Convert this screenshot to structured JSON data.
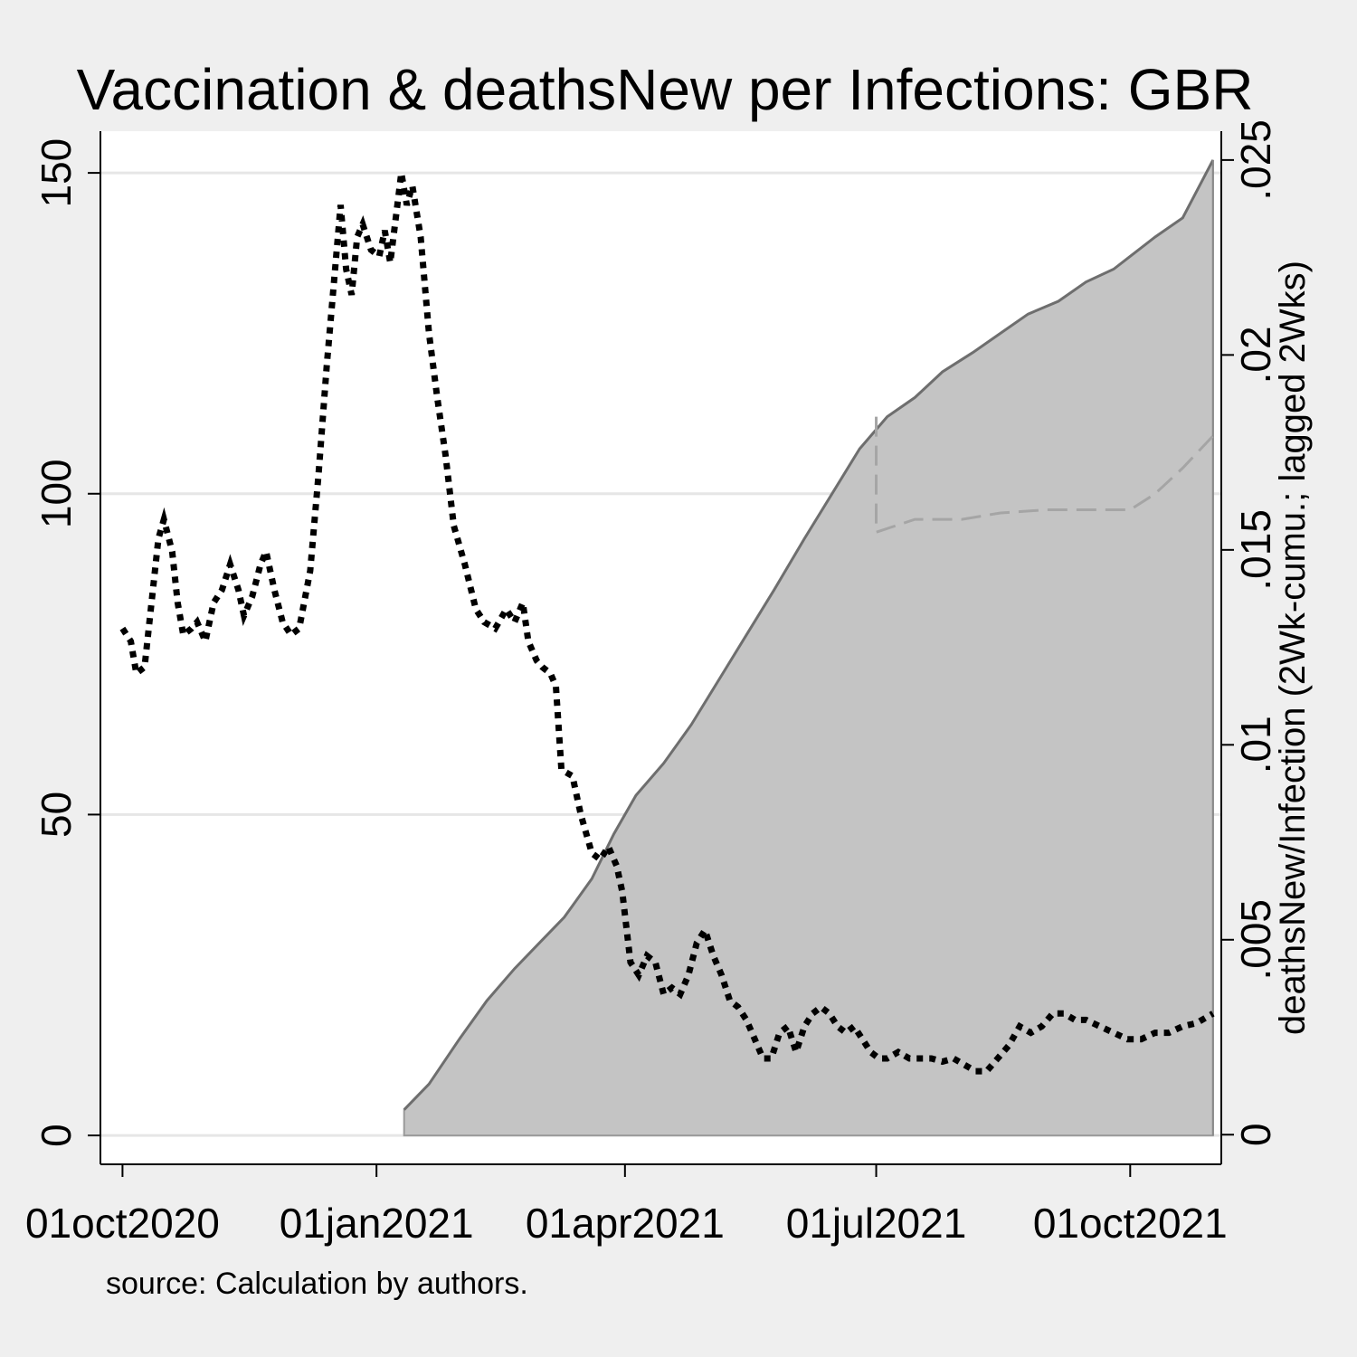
{
  "chart_data": {
    "type": "line",
    "title": "Vaccination & deathsNew per Infections: GBR",
    "note": "source: Calculation by authors.",
    "x_axis": {
      "type": "date",
      "ticks": [
        {
          "date": "2020-10-01",
          "label": "01oct2020"
        },
        {
          "date": "2021-01-01",
          "label": "01jan2021"
        },
        {
          "date": "2021-04-01",
          "label": "01apr2021"
        },
        {
          "date": "2021-07-01",
          "label": "01jul2021"
        },
        {
          "date": "2021-10-01",
          "label": "01oct2021"
        }
      ],
      "range": [
        "2020-09-23",
        "2021-11-03"
      ]
    },
    "y_left": {
      "ticks": [
        {
          "value": 0,
          "label": "0"
        },
        {
          "value": 50,
          "label": "50"
        },
        {
          "value": 100,
          "label": "100"
        },
        {
          "value": 150,
          "label": "150"
        }
      ],
      "range": [
        -4.5,
        156.5
      ],
      "gridlines": [
        0,
        50,
        100,
        150
      ]
    },
    "y_right": {
      "label": "deathsNew/Infection (2Wk-cumu.; lagged 2Wks)",
      "ticks": [
        {
          "value": 0,
          "label": "0"
        },
        {
          "value": 0.005,
          "label": ".005"
        },
        {
          "value": 0.01,
          "label": ".01"
        },
        {
          "value": 0.015,
          "label": ".015"
        },
        {
          "value": 0.02,
          "label": ".02"
        },
        {
          "value": 0.025,
          "label": ".025"
        }
      ],
      "range": [
        -0.00076,
        0.02574
      ]
    },
    "series": [
      {
        "axis": "left",
        "style": "area",
        "color": "#c4c4c4",
        "points": [
          [
            "2021-01-11",
            4
          ],
          [
            "2021-01-20",
            8
          ],
          [
            "2021-01-31",
            15
          ],
          [
            "2021-02-10",
            21
          ],
          [
            "2021-02-20",
            26
          ],
          [
            "2021-03-01",
            30
          ],
          [
            "2021-03-10",
            34
          ],
          [
            "2021-03-20",
            40
          ],
          [
            "2021-03-28",
            47
          ],
          [
            "2021-04-05",
            53
          ],
          [
            "2021-04-15",
            58
          ],
          [
            "2021-04-25",
            64
          ],
          [
            "2021-05-05",
            71
          ],
          [
            "2021-05-15",
            78
          ],
          [
            "2021-05-25",
            85
          ],
          [
            "2021-06-05",
            93
          ],
          [
            "2021-06-15",
            100
          ],
          [
            "2021-06-25",
            107
          ],
          [
            "2021-07-05",
            112
          ],
          [
            "2021-07-15",
            115
          ],
          [
            "2021-07-25",
            119
          ],
          [
            "2021-08-05",
            122
          ],
          [
            "2021-08-15",
            125
          ],
          [
            "2021-08-25",
            128
          ],
          [
            "2021-09-05",
            130
          ],
          [
            "2021-09-15",
            133
          ],
          [
            "2021-09-25",
            135
          ],
          [
            "2021-10-01",
            137
          ],
          [
            "2021-10-10",
            140
          ],
          [
            "2021-10-20",
            143
          ],
          [
            "2021-10-31",
            152
          ]
        ]
      },
      {
        "axis": "left",
        "style": "dashed",
        "color": "#a5a5a5",
        "points": [
          [
            "2021-07-01",
            94
          ],
          [
            "2021-07-15",
            96
          ],
          [
            "2021-08-01",
            96
          ],
          [
            "2021-08-15",
            97
          ],
          [
            "2021-09-01",
            97.5
          ],
          [
            "2021-09-15",
            97.5
          ],
          [
            "2021-10-01",
            97.5
          ],
          [
            "2021-10-10",
            100
          ],
          [
            "2021-10-20",
            104
          ],
          [
            "2021-10-31",
            109
          ]
        ]
      },
      {
        "axis": "left",
        "style": "dotted",
        "color": "#000000",
        "points": [
          [
            "2020-10-01",
            79
          ],
          [
            "2020-10-04",
            77
          ],
          [
            "2020-10-06",
            72
          ],
          [
            "2020-10-09",
            73
          ],
          [
            "2020-10-12",
            85
          ],
          [
            "2020-10-14",
            93
          ],
          [
            "2020-10-16",
            96
          ],
          [
            "2020-10-19",
            91
          ],
          [
            "2020-10-21",
            83
          ],
          [
            "2020-10-23",
            78
          ],
          [
            "2020-10-26",
            79
          ],
          [
            "2020-10-28",
            80
          ],
          [
            "2020-10-31",
            77
          ],
          [
            "2020-11-03",
            83
          ],
          [
            "2020-11-06",
            85
          ],
          [
            "2020-11-09",
            89
          ],
          [
            "2020-11-12",
            85
          ],
          [
            "2020-11-14",
            81
          ],
          [
            "2020-11-17",
            84
          ],
          [
            "2020-11-20",
            89
          ],
          [
            "2020-11-22",
            91
          ],
          [
            "2020-11-25",
            85
          ],
          [
            "2020-11-28",
            80
          ],
          [
            "2020-12-01",
            78
          ],
          [
            "2020-12-04",
            79
          ],
          [
            "2020-12-08",
            88
          ],
          [
            "2020-12-11",
            103
          ],
          [
            "2020-12-14",
            120
          ],
          [
            "2020-12-17",
            135
          ],
          [
            "2020-12-19",
            145
          ],
          [
            "2020-12-21",
            135
          ],
          [
            "2020-12-23",
            131
          ],
          [
            "2020-12-25",
            140
          ],
          [
            "2020-12-27",
            142
          ],
          [
            "2020-12-30",
            138
          ],
          [
            "2021-01-02",
            137
          ],
          [
            "2021-01-04",
            141
          ],
          [
            "2021-01-06",
            136
          ],
          [
            "2021-01-08",
            143
          ],
          [
            "2021-01-10",
            150
          ],
          [
            "2021-01-12",
            145
          ],
          [
            "2021-01-14",
            148
          ],
          [
            "2021-01-17",
            140
          ],
          [
            "2021-01-20",
            125
          ],
          [
            "2021-01-23",
            115
          ],
          [
            "2021-01-26",
            106
          ],
          [
            "2021-01-29",
            95
          ],
          [
            "2021-02-02",
            89
          ],
          [
            "2021-02-06",
            82
          ],
          [
            "2021-02-09",
            80
          ],
          [
            "2021-02-13",
            79
          ],
          [
            "2021-02-17",
            82
          ],
          [
            "2021-02-20",
            80
          ],
          [
            "2021-02-23",
            83
          ],
          [
            "2021-02-25",
            77
          ],
          [
            "2021-02-28",
            74
          ],
          [
            "2021-03-02",
            73
          ],
          [
            "2021-03-05",
            72
          ],
          [
            "2021-03-07",
            70
          ],
          [
            "2021-03-09",
            57
          ],
          [
            "2021-03-13",
            56
          ],
          [
            "2021-03-16",
            50
          ],
          [
            "2021-03-20",
            44
          ],
          [
            "2021-03-23",
            43
          ],
          [
            "2021-03-26",
            45
          ],
          [
            "2021-03-29",
            42
          ],
          [
            "2021-03-31",
            38
          ],
          [
            "2021-04-03",
            27
          ],
          [
            "2021-04-06",
            25
          ],
          [
            "2021-04-09",
            28
          ],
          [
            "2021-04-12",
            27
          ],
          [
            "2021-04-15",
            22
          ],
          [
            "2021-04-18",
            23
          ],
          [
            "2021-04-21",
            22
          ],
          [
            "2021-04-24",
            25
          ],
          [
            "2021-04-27",
            30
          ],
          [
            "2021-04-30",
            32
          ],
          [
            "2021-05-03",
            28
          ],
          [
            "2021-05-06",
            25
          ],
          [
            "2021-05-09",
            21
          ],
          [
            "2021-05-12",
            20
          ],
          [
            "2021-05-15",
            18
          ],
          [
            "2021-05-18",
            15
          ],
          [
            "2021-05-21",
            12
          ],
          [
            "2021-05-24",
            12
          ],
          [
            "2021-05-27",
            16
          ],
          [
            "2021-05-30",
            17
          ],
          [
            "2021-06-02",
            13
          ],
          [
            "2021-06-05",
            17
          ],
          [
            "2021-06-08",
            19
          ],
          [
            "2021-06-11",
            20
          ],
          [
            "2021-06-14",
            19
          ],
          [
            "2021-06-17",
            17
          ],
          [
            "2021-06-20",
            16
          ],
          [
            "2021-06-23",
            17
          ],
          [
            "2021-06-26",
            15
          ],
          [
            "2021-06-29",
            13
          ],
          [
            "2021-07-02",
            12
          ],
          [
            "2021-07-05",
            12
          ],
          [
            "2021-07-09",
            13
          ],
          [
            "2021-07-13",
            12
          ],
          [
            "2021-07-17",
            12
          ],
          [
            "2021-07-21",
            12
          ],
          [
            "2021-07-25",
            11.5
          ],
          [
            "2021-07-29",
            12
          ],
          [
            "2021-08-02",
            11
          ],
          [
            "2021-08-06",
            10
          ],
          [
            "2021-08-10",
            10
          ],
          [
            "2021-08-14",
            12
          ],
          [
            "2021-08-18",
            14
          ],
          [
            "2021-08-22",
            17
          ],
          [
            "2021-08-26",
            16
          ],
          [
            "2021-08-30",
            17
          ],
          [
            "2021-09-03",
            19
          ],
          [
            "2021-09-07",
            19
          ],
          [
            "2021-09-11",
            18
          ],
          [
            "2021-09-15",
            18
          ],
          [
            "2021-09-20",
            17
          ],
          [
            "2021-09-25",
            16
          ],
          [
            "2021-09-30",
            15
          ],
          [
            "2021-10-05",
            15
          ],
          [
            "2021-10-10",
            16
          ],
          [
            "2021-10-15",
            16
          ],
          [
            "2021-10-20",
            17
          ],
          [
            "2021-10-25",
            17.5
          ],
          [
            "2021-10-31",
            19
          ]
        ]
      }
    ]
  }
}
